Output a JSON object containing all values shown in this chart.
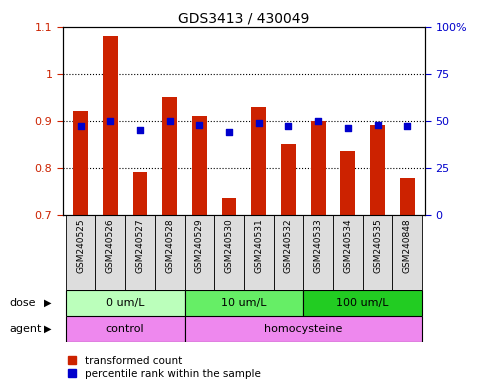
{
  "title": "GDS3413 / 430049",
  "samples": [
    "GSM240525",
    "GSM240526",
    "GSM240527",
    "GSM240528",
    "GSM240529",
    "GSM240530",
    "GSM240531",
    "GSM240532",
    "GSM240533",
    "GSM240534",
    "GSM240535",
    "GSM240848"
  ],
  "transformed_count": [
    0.92,
    1.08,
    0.79,
    0.95,
    0.91,
    0.735,
    0.93,
    0.85,
    0.9,
    0.835,
    0.89,
    0.778
  ],
  "percentile_rank": [
    47,
    50,
    45,
    50,
    48,
    44,
    49,
    47,
    50,
    46,
    48,
    47
  ],
  "ylim_left": [
    0.7,
    1.1
  ],
  "ylim_right": [
    0,
    100
  ],
  "yticks_left": [
    0.7,
    0.8,
    0.9,
    1.0,
    1.1
  ],
  "yticks_right": [
    0,
    25,
    50,
    75,
    100
  ],
  "ytick_labels_right": [
    "0",
    "25",
    "50",
    "75",
    "100%"
  ],
  "ytick_labels_left": [
    "0.7",
    "0.8",
    "0.9",
    "1",
    "1.1"
  ],
  "bar_color": "#cc2200",
  "dot_color": "#0000cc",
  "hgrid_values": [
    0.8,
    0.9,
    1.0
  ],
  "dose_labels": [
    "0 um/L",
    "10 um/L",
    "100 um/L"
  ],
  "dose_col_ranges": [
    [
      0,
      3
    ],
    [
      4,
      7
    ],
    [
      8,
      11
    ]
  ],
  "dose_colors": [
    "#bbffbb",
    "#66ee66",
    "#22cc22"
  ],
  "agent_labels": [
    "control",
    "homocysteine"
  ],
  "agent_col_ranges": [
    [
      0,
      3
    ],
    [
      4,
      11
    ]
  ],
  "agent_color": "#ee88ee",
  "xlabel_bg": "#dddddd",
  "legend_entries": [
    "transformed count",
    "percentile rank within the sample"
  ],
  "legend_colors": [
    "#cc2200",
    "#0000cc"
  ],
  "left_tick_color": "#cc2200",
  "right_tick_color": "#0000cc"
}
